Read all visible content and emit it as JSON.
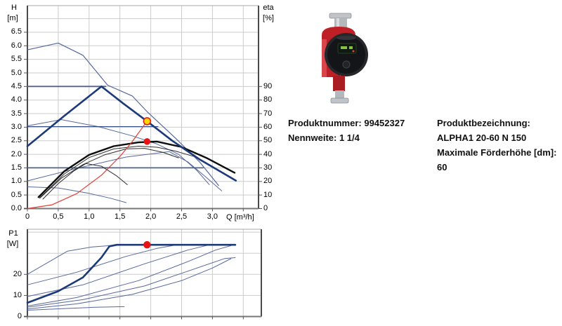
{
  "page": {
    "background": "#ffffff"
  },
  "product": {
    "number_label": "Produktnummer: 99452327",
    "width_label": "Nennweite: 1 1/4",
    "name_label": "Produktbezeichnung:",
    "name_value": "ALPHA1 20-60 N 150",
    "max_head_label": "Maximale Förderhöhe [dm]:",
    "max_head_value": "60",
    "image_name": "grundfos-alpha1-circulator-pump-photo"
  },
  "colors": {
    "navy": "#1d3a78",
    "lightNavy": "#56679b",
    "steelNavy": "#50628f",
    "black": "#0d0d0d",
    "thinBlack": "#2e2e2e",
    "red": "#e04038",
    "marker_red": "#e81313",
    "marker_yellow": "#ffd400",
    "grid": "#cbcbcb",
    "axis_dark": "#4a4a4a",
    "frame_light": "#a8a8a8",
    "pump_red": "#bf2026",
    "pump_dark": "#17181c",
    "pump_metal": "#b3b8bd"
  },
  "chart_data": [
    {
      "type": "line",
      "title": "",
      "xlabel": "Q [m³/h]",
      "axis_left": [
        "H",
        "[m]"
      ],
      "axis_right": [
        "eta",
        "[%]"
      ],
      "xlim": [
        0,
        3.75
      ],
      "ylim_left": [
        0,
        7.45
      ],
      "ylim_right": [
        0,
        90
      ],
      "grid": true,
      "x_grid": [
        0.5,
        1.0,
        1.5,
        2.0,
        2.5,
        3.0,
        3.5
      ],
      "y_grid_step": 0.5,
      "x_ticks": [
        {
          "v": 0,
          "label": "0"
        },
        {
          "v": 0.5,
          "label": "0,5"
        },
        {
          "v": 1.0,
          "label": "1,0"
        },
        {
          "v": 1.5,
          "label": "1,5"
        },
        {
          "v": 2.0,
          "label": "2,0"
        },
        {
          "v": 2.5,
          "label": "2,5"
        },
        {
          "v": 3.0,
          "label": "3,0"
        }
      ],
      "y_ticks_left": [
        {
          "v": 0.0,
          "label": "0.0"
        },
        {
          "v": 0.5,
          "label": "0.5"
        },
        {
          "v": 1.0,
          "label": "1.0"
        },
        {
          "v": 1.5,
          "label": "1.5"
        },
        {
          "v": 2.0,
          "label": "2.0"
        },
        {
          "v": 2.5,
          "label": "2.5"
        },
        {
          "v": 3.0,
          "label": "3.0"
        },
        {
          "v": 3.5,
          "label": "3.5"
        },
        {
          "v": 4.0,
          "label": "4.0"
        },
        {
          "v": 4.5,
          "label": "4.5"
        },
        {
          "v": 5.0,
          "label": "5.0"
        },
        {
          "v": 5.5,
          "label": "5.5"
        },
        {
          "v": 6.0,
          "label": "6.0"
        },
        {
          "v": 6.5,
          "label": "6.5"
        }
      ],
      "y_ticks_right": [
        {
          "v": 0,
          "label": "0"
        },
        {
          "v": 10,
          "label": "10"
        },
        {
          "v": 20,
          "label": "20"
        },
        {
          "v": 30,
          "label": "30"
        },
        {
          "v": 40,
          "label": "40"
        },
        {
          "v": 50,
          "label": "50"
        },
        {
          "v": 60,
          "label": "60"
        },
        {
          "v": 70,
          "label": "70"
        },
        {
          "v": 80,
          "label": "80"
        },
        {
          "v": 90,
          "label": "90"
        }
      ],
      "series": [
        {
          "name": "max-speed-curve",
          "color": "lightNavy",
          "width": 1.2,
          "points": [
            [
              0,
              5.85
            ],
            [
              0.5,
              6.1
            ],
            [
              0.9,
              5.65
            ],
            [
              1.3,
              4.55
            ],
            [
              1.7,
              4.15
            ],
            [
              1.95,
              3.55
            ],
            [
              2.4,
              2.6
            ],
            [
              2.8,
              1.7
            ],
            [
              3.1,
              0.85
            ]
          ]
        },
        {
          "name": "speed2-curve",
          "color": "lightNavy",
          "width": 1,
          "points": [
            [
              0,
              3.05
            ],
            [
              0.55,
              3.28
            ],
            [
              1.15,
              3.02
            ],
            [
              1.7,
              2.68
            ],
            [
              2.1,
              2.38
            ],
            [
              2.45,
              2.0
            ],
            [
              2.75,
              1.4
            ],
            [
              2.95,
              0.88
            ]
          ]
        },
        {
          "name": "pp-rising-curve",
          "color": "lightNavy",
          "width": 1,
          "points": [
            [
              0,
              1.02
            ],
            [
              0.8,
              1.48
            ],
            [
              1.6,
              1.9
            ],
            [
              2.3,
              2.1
            ],
            [
              2.6,
              1.72
            ],
            [
              2.9,
              1.15
            ],
            [
              3.15,
              0.65
            ]
          ]
        },
        {
          "name": "speed1-curve",
          "color": "lightNavy",
          "width": 1,
          "points": [
            [
              0,
              0.8
            ],
            [
              0.5,
              0.76
            ],
            [
              1.0,
              0.56
            ],
            [
              1.35,
              0.38
            ],
            [
              1.6,
              0.22
            ]
          ]
        },
        {
          "name": "cp-curve-4.5m",
          "color": "steelNavy",
          "width": 1.8,
          "points": [
            [
              0,
              4.5
            ],
            [
              1.27,
              4.5
            ]
          ]
        },
        {
          "name": "cp-curve-3.0m",
          "color": "navy",
          "width": 1,
          "points": [
            [
              0,
              3.02
            ],
            [
              2.12,
              3.02
            ]
          ]
        },
        {
          "name": "cp-curve-1.5m",
          "color": "steelNavy",
          "width": 1.8,
          "points": [
            [
              0,
              1.5
            ],
            [
              2.85,
              1.5
            ]
          ]
        },
        {
          "name": "eta-curve-2",
          "color": "thinBlack",
          "width": 1,
          "points": [
            [
              0.2,
              0.4
            ],
            [
              0.6,
              1.28
            ],
            [
              1.0,
              1.88
            ],
            [
              1.4,
              2.2
            ],
            [
              1.8,
              2.3
            ],
            [
              2.1,
              2.26
            ],
            [
              2.4,
              2.12
            ],
            [
              2.7,
              1.92
            ]
          ]
        },
        {
          "name": "eta-curve-3",
          "color": "thinBlack",
          "width": 1,
          "points": [
            [
              0.2,
              0.38
            ],
            [
              0.55,
              1.12
            ],
            [
              0.9,
              1.62
            ],
            [
              1.25,
              1.98
            ],
            [
              1.6,
              2.2
            ],
            [
              1.9,
              2.22
            ],
            [
              2.2,
              2.07
            ],
            [
              2.45,
              1.87
            ]
          ]
        },
        {
          "name": "eta-curve-1",
          "color": "thinBlack",
          "width": 1,
          "points": [
            [
              0.25,
              0.35
            ],
            [
              0.5,
              0.92
            ],
            [
              0.75,
              1.38
            ],
            [
              0.95,
              1.66
            ],
            [
              1.2,
              1.56
            ],
            [
              1.45,
              1.2
            ],
            [
              1.62,
              0.88
            ]
          ]
        },
        {
          "name": "eta-curve-max",
          "color": "black",
          "width": 2.4,
          "points": [
            [
              0.18,
              0.42
            ],
            [
              0.6,
              1.38
            ],
            [
              1.0,
              1.98
            ],
            [
              1.4,
              2.3
            ],
            [
              1.8,
              2.44
            ],
            [
              2.1,
              2.47
            ],
            [
              2.5,
              2.27
            ],
            [
              2.9,
              1.87
            ],
            [
              3.36,
              1.32
            ]
          ]
        },
        {
          "name": "pump-curve-selected",
          "color": "navy",
          "width": 2.6,
          "points": [
            [
              0,
              2.3
            ],
            [
              0.6,
              3.42
            ],
            [
              1.2,
              4.5
            ],
            [
              1.55,
              3.88
            ],
            [
              1.94,
              3.22
            ],
            [
              2.35,
              2.5
            ],
            [
              2.8,
              1.8
            ],
            [
              3.38,
              1.03
            ]
          ]
        },
        {
          "name": "system-curve",
          "color": "red",
          "width": 1.2,
          "points": [
            [
              0,
              0
            ],
            [
              0.4,
              0.14
            ],
            [
              0.8,
              0.55
            ],
            [
              1.2,
              1.23
            ],
            [
              1.5,
              1.92
            ],
            [
              1.7,
              2.47
            ],
            [
              1.94,
              3.22
            ]
          ]
        }
      ],
      "markers": [
        {
          "name": "duty-point-qh",
          "x": 1.94,
          "y": 3.22,
          "fill": "marker_yellow",
          "stroke": "marker_red",
          "r": 5
        },
        {
          "name": "duty-point-eta",
          "x": 1.94,
          "y": 2.47,
          "fill": "marker_red",
          "stroke": "marker_red",
          "r": 4
        }
      ]
    },
    {
      "type": "line",
      "title": "",
      "xlabel": "",
      "axis_left": [
        "P1",
        "[W]"
      ],
      "xlim": [
        0,
        3.79
      ],
      "ylim_left": [
        0,
        41.5
      ],
      "grid": true,
      "x_grid": [
        0.5,
        1.0,
        1.5,
        2.0,
        2.5,
        3.0,
        3.5
      ],
      "y_grid": [
        10,
        20,
        30,
        40
      ],
      "x_ticks": [],
      "y_ticks_left": [
        {
          "v": 0,
          "label": "0"
        },
        {
          "v": 10,
          "label": "10"
        },
        {
          "v": 20,
          "label": "20"
        }
      ],
      "y_ticks_right": [],
      "series": [
        {
          "name": "p1-curve-1",
          "color": "lightNavy",
          "width": 1,
          "points": [
            [
              0,
              20
            ],
            [
              0.65,
              31
            ],
            [
              1.05,
              33
            ],
            [
              1.5,
              34
            ]
          ]
        },
        {
          "name": "p1-curve-2",
          "color": "lightNavy",
          "width": 1,
          "points": [
            [
              0,
              15
            ],
            [
              0.8,
              21
            ],
            [
              1.6,
              28.5
            ],
            [
              2.1,
              32.3
            ],
            [
              2.42,
              34
            ]
          ]
        },
        {
          "name": "p1-curve-3",
          "color": "lightNavy",
          "width": 1,
          "points": [
            [
              0,
              9.5
            ],
            [
              0.9,
              15
            ],
            [
              1.9,
              25
            ],
            [
              2.6,
              31.5
            ],
            [
              2.95,
              34
            ]
          ]
        },
        {
          "name": "p1-curve-4",
          "color": "lightNavy",
          "width": 1,
          "points": [
            [
              0,
              5
            ],
            [
              0.8,
              9
            ],
            [
              1.8,
              17
            ],
            [
              2.6,
              26
            ],
            [
              3.05,
              31.5
            ],
            [
              3.3,
              33.6
            ]
          ]
        },
        {
          "name": "p1-curve-5",
          "color": "lightNavy",
          "width": 1,
          "points": [
            [
              0,
              4.4
            ],
            [
              0.9,
              8
            ],
            [
              1.9,
              14.5
            ],
            [
              2.7,
              22.5
            ],
            [
              3.2,
              27.5
            ],
            [
              3.37,
              27.9
            ]
          ]
        },
        {
          "name": "p1-curve-6",
          "color": "lightNavy",
          "width": 1,
          "points": [
            [
              0,
              3.6
            ],
            [
              0.8,
              6
            ],
            [
              1.7,
              10.5
            ],
            [
              2.5,
              17
            ],
            [
              3.0,
              23
            ],
            [
              3.3,
              27.4
            ]
          ]
        },
        {
          "name": "p1-curve-7",
          "color": "lightNavy",
          "width": 1,
          "points": [
            [
              0,
              3
            ],
            [
              0.6,
              3.8
            ],
            [
              1.1,
              4.4
            ],
            [
              1.57,
              4.7
            ]
          ]
        },
        {
          "name": "p1-curve-selected",
          "color": "navy",
          "width": 2.6,
          "points": [
            [
              0,
              6.5
            ],
            [
              0.5,
              12
            ],
            [
              0.9,
              18.5
            ],
            [
              1.2,
              28
            ],
            [
              1.33,
              33.3
            ],
            [
              1.45,
              34
            ],
            [
              3.37,
              34
            ]
          ]
        }
      ],
      "markers": [
        {
          "name": "duty-point-p1",
          "x": 1.94,
          "y": 34,
          "fill": "marker_red",
          "stroke": "marker_red",
          "r": 4.5
        }
      ]
    }
  ]
}
